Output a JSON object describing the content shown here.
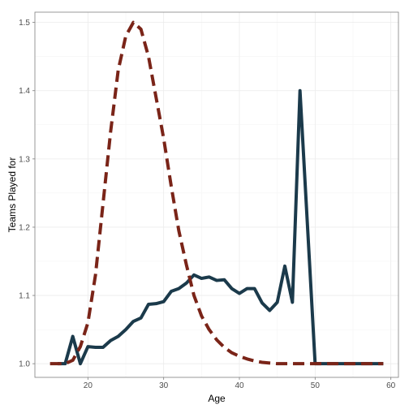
{
  "chart_data": {
    "type": "line",
    "title": "",
    "xlabel": "Age",
    "ylabel": "Teams Played for",
    "xlim": [
      13,
      61
    ],
    "ylim": [
      0.98,
      1.515
    ],
    "x_ticks": [
      20,
      30,
      40,
      50,
      60
    ],
    "y_ticks": [
      1.0,
      1.1,
      1.2,
      1.3,
      1.4,
      1.5
    ],
    "x_tick_labels": [
      "20",
      "30",
      "40",
      "50",
      "60"
    ],
    "y_tick_labels": [
      "1.0",
      "1.1",
      "1.2",
      "1.3",
      "1.4",
      "1.5"
    ],
    "grid": true,
    "legend": "none",
    "series": [
      {
        "style": "solid",
        "color": "#1b3a4b",
        "x": [
          16,
          17,
          18,
          19,
          20,
          21,
          22,
          23,
          24,
          25,
          26,
          27,
          28,
          29,
          30,
          31,
          32,
          33,
          34,
          35,
          36,
          37,
          38,
          39,
          40,
          41,
          42,
          43,
          44,
          45,
          46,
          47,
          48,
          49,
          50,
          51,
          52,
          53,
          54,
          55,
          56,
          57,
          58,
          59
        ],
        "y": [
          1.0,
          1.0,
          1.04,
          1.0,
          1.025,
          1.024,
          1.024,
          1.034,
          1.04,
          1.05,
          1.062,
          1.067,
          1.087,
          1.088,
          1.091,
          1.106,
          1.11,
          1.118,
          1.13,
          1.125,
          1.127,
          1.122,
          1.123,
          1.11,
          1.103,
          1.11,
          1.11,
          1.089,
          1.078,
          1.09,
          1.143,
          1.09,
          1.4,
          1.2,
          1.0,
          1.0,
          1.0,
          1.0,
          1.0,
          1.0,
          1.0,
          1.0,
          1.0,
          1.0
        ]
      },
      {
        "style": "dashed",
        "color": "#7a2418",
        "x": [
          15,
          16,
          17,
          18,
          19,
          20,
          21,
          22,
          23,
          24,
          25,
          26,
          27,
          28,
          29,
          30,
          31,
          32,
          33,
          34,
          35,
          36,
          37,
          38,
          39,
          40,
          41,
          42,
          43,
          44,
          45,
          46,
          47,
          48,
          49,
          50,
          51,
          52,
          53,
          54,
          55,
          56,
          57,
          58,
          59
        ],
        "y": [
          1.0,
          1.0,
          1.0,
          1.005,
          1.025,
          1.06,
          1.13,
          1.235,
          1.34,
          1.43,
          1.48,
          1.5,
          1.49,
          1.45,
          1.39,
          1.33,
          1.26,
          1.195,
          1.145,
          1.1,
          1.07,
          1.05,
          1.035,
          1.024,
          1.016,
          1.011,
          1.007,
          1.004,
          1.002,
          1.001,
          1.0,
          1.0,
          1.0,
          1.0,
          1.0,
          1.0,
          1.0,
          1.0,
          1.0,
          1.0,
          1.0,
          1.0,
          1.0,
          1.0,
          1.0
        ]
      }
    ]
  }
}
